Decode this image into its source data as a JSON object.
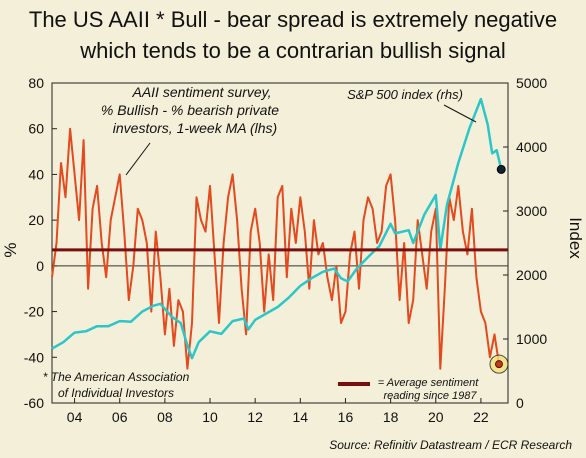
{
  "title_line1": "The US AAII * Bull - bear spread is extremely negative",
  "title_line2": "which tends to be a contrarian bullish signal",
  "source": "Source: Refinitiv Datastream / ECR Research",
  "colors": {
    "background": "#f3efd8",
    "spread": "#e34a1e",
    "sp500": "#2cc6c9",
    "average": "#7a0e0e",
    "zero": "#333333",
    "highlight_ring": "#f4e27a"
  },
  "chart_data": {
    "type": "line",
    "title": "The US AAII * Bull - bear spread is extremely negative which tends to be a contrarian bullish signal",
    "xlabel": "",
    "ylabel_left": "%",
    "ylabel_right": "Index",
    "x_ticks": [
      "04",
      "06",
      "08",
      "10",
      "12",
      "14",
      "16",
      "18",
      "20",
      "22"
    ],
    "x_range": [
      2003.0,
      2023.2
    ],
    "y_left_ticks": [
      80,
      60,
      40,
      20,
      0,
      -20,
      -40,
      -60
    ],
    "y_left_range": [
      -60,
      80
    ],
    "y_right_ticks": [
      5000,
      4000,
      3000,
      2000,
      1000,
      0
    ],
    "y_right_range": [
      0,
      5000
    ],
    "average_spread": 7,
    "series": [
      {
        "name": "AAII sentiment survey, % Bullish - % bearish private investors, 1-week MA (lhs)",
        "axis": "left",
        "x": [
          2003.0,
          2003.2,
          2003.4,
          2003.6,
          2003.8,
          2004.0,
          2004.2,
          2004.4,
          2004.6,
          2004.8,
          2005.0,
          2005.2,
          2005.4,
          2005.6,
          2005.8,
          2006.0,
          2006.2,
          2006.4,
          2006.6,
          2006.8,
          2007.0,
          2007.2,
          2007.4,
          2007.6,
          2007.8,
          2008.0,
          2008.2,
          2008.4,
          2008.6,
          2008.8,
          2009.0,
          2009.2,
          2009.4,
          2009.6,
          2009.8,
          2010.0,
          2010.2,
          2010.4,
          2010.6,
          2010.8,
          2011.0,
          2011.2,
          2011.4,
          2011.6,
          2011.8,
          2012.0,
          2012.2,
          2012.4,
          2012.6,
          2012.8,
          2013.0,
          2013.2,
          2013.4,
          2013.6,
          2013.8,
          2014.0,
          2014.2,
          2014.4,
          2014.6,
          2014.8,
          2015.0,
          2015.2,
          2015.4,
          2015.6,
          2015.8,
          2016.0,
          2016.2,
          2016.4,
          2016.6,
          2016.8,
          2017.0,
          2017.2,
          2017.4,
          2017.6,
          2017.8,
          2018.0,
          2018.2,
          2018.4,
          2018.6,
          2018.8,
          2019.0,
          2019.2,
          2019.4,
          2019.6,
          2019.8,
          2020.0,
          2020.2,
          2020.4,
          2020.6,
          2020.8,
          2021.0,
          2021.2,
          2021.4,
          2021.6,
          2021.8,
          2022.0,
          2022.2,
          2022.4,
          2022.6,
          2022.8
        ],
        "values": [
          -5,
          10,
          45,
          30,
          60,
          40,
          20,
          55,
          -10,
          25,
          35,
          10,
          -5,
          20,
          30,
          40,
          15,
          -15,
          0,
          25,
          20,
          10,
          -20,
          15,
          -5,
          -30,
          -10,
          -35,
          -15,
          -20,
          -45,
          -25,
          30,
          20,
          15,
          35,
          5,
          -25,
          10,
          30,
          40,
          20,
          -10,
          -30,
          15,
          25,
          10,
          -20,
          5,
          -15,
          30,
          35,
          -5,
          25,
          10,
          30,
          15,
          -10,
          20,
          5,
          10,
          -5,
          -15,
          0,
          -25,
          -20,
          5,
          15,
          -10,
          20,
          30,
          25,
          10,
          15,
          35,
          40,
          20,
          -15,
          10,
          -25,
          -15,
          20,
          5,
          -10,
          15,
          25,
          -45,
          -10,
          30,
          20,
          35,
          15,
          5,
          25,
          -5,
          -20,
          -25,
          -40,
          -30,
          -43
        ],
        "color": "#e34a1e"
      },
      {
        "name": "S&P 500 index (rhs)",
        "axis": "right",
        "x": [
          2003.0,
          2003.5,
          2004.0,
          2004.5,
          2005.0,
          2005.5,
          2006.0,
          2006.5,
          2007.0,
          2007.5,
          2007.8,
          2008.3,
          2008.7,
          2009.0,
          2009.2,
          2009.5,
          2010.0,
          2010.5,
          2011.0,
          2011.5,
          2011.7,
          2012.0,
          2012.5,
          2013.0,
          2013.5,
          2014.0,
          2014.5,
          2015.0,
          2015.5,
          2015.8,
          2016.1,
          2016.5,
          2017.0,
          2017.5,
          2018.0,
          2018.2,
          2018.8,
          2019.0,
          2019.5,
          2020.0,
          2020.2,
          2020.5,
          2021.0,
          2021.5,
          2022.0,
          2022.3,
          2022.5,
          2022.7,
          2022.9
        ],
        "values": [
          850,
          950,
          1100,
          1120,
          1200,
          1200,
          1280,
          1270,
          1430,
          1520,
          1550,
          1350,
          1250,
          900,
          700,
          950,
          1120,
          1080,
          1280,
          1320,
          1150,
          1300,
          1400,
          1500,
          1650,
          1830,
          1950,
          2050,
          2100,
          1950,
          1900,
          2100,
          2280,
          2450,
          2800,
          2650,
          2700,
          2500,
          2950,
          3250,
          2400,
          3100,
          3750,
          4300,
          4750,
          4350,
          3900,
          3950,
          3650
        ],
        "color": "#2cc6c9"
      }
    ],
    "annotations": [
      "AAII sentiment survey,",
      "% Bullish - % bearish private",
      "investors, 1-week MA (lhs)",
      "S&P 500 index (rhs)",
      "* The American Association",
      "of Individual Investors",
      "= Average sentiment",
      "reading since 1987"
    ]
  }
}
